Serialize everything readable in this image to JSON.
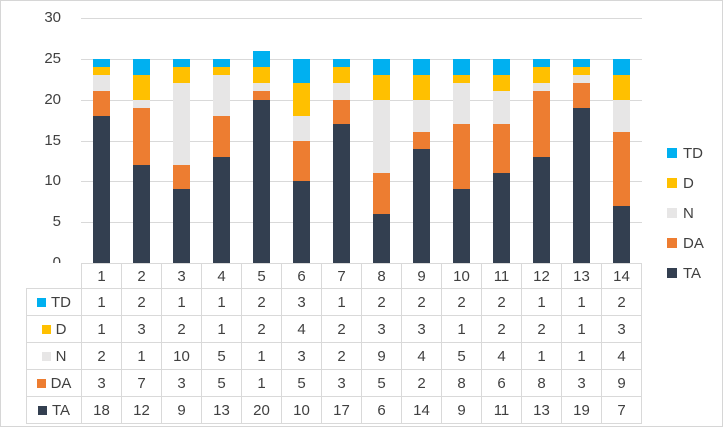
{
  "chart_data": {
    "type": "bar",
    "stacked": true,
    "title": "",
    "xlabel": "",
    "ylabel": "",
    "categories": [
      "1",
      "2",
      "3",
      "4",
      "5",
      "6",
      "7",
      "8",
      "9",
      "10",
      "11",
      "12",
      "13",
      "14"
    ],
    "series": [
      {
        "name": "TA",
        "color": "#333F50",
        "values": [
          18,
          12,
          9,
          13,
          20,
          10,
          17,
          6,
          14,
          9,
          11,
          13,
          19,
          7
        ]
      },
      {
        "name": "DA",
        "color": "#ED7D31",
        "values": [
          3,
          7,
          3,
          5,
          1,
          5,
          3,
          5,
          2,
          8,
          6,
          8,
          3,
          9
        ]
      },
      {
        "name": "N",
        "color": "#E7E6E6",
        "values": [
          2,
          1,
          10,
          5,
          1,
          3,
          2,
          9,
          4,
          5,
          4,
          1,
          1,
          4
        ]
      },
      {
        "name": "D",
        "color": "#FFC000",
        "values": [
          1,
          3,
          2,
          1,
          2,
          4,
          2,
          3,
          3,
          1,
          2,
          2,
          1,
          3
        ]
      },
      {
        "name": "TD",
        "color": "#00B0F0",
        "values": [
          1,
          2,
          1,
          1,
          2,
          3,
          1,
          2,
          2,
          2,
          2,
          1,
          1,
          2
        ]
      }
    ],
    "stack_order_bottom_to_top": [
      "TA",
      "DA",
      "N",
      "D",
      "TD"
    ],
    "legend_order_top_to_bottom": [
      "TD",
      "D",
      "N",
      "DA",
      "TA"
    ],
    "legend_position": "right",
    "data_table_shown": true,
    "data_table_row_order": [
      "TD",
      "D",
      "N",
      "DA",
      "TA"
    ],
    "ylim": [
      0,
      30
    ],
    "yticks": [
      0,
      5,
      10,
      15,
      20,
      25,
      30
    ],
    "grid": true,
    "colors": {
      "gridline": "#D9D9D9",
      "table_border": "#D9D9D9",
      "text": "#404040",
      "background": "#FFFFFF",
      "frame_border": "#D6D6D6"
    }
  }
}
